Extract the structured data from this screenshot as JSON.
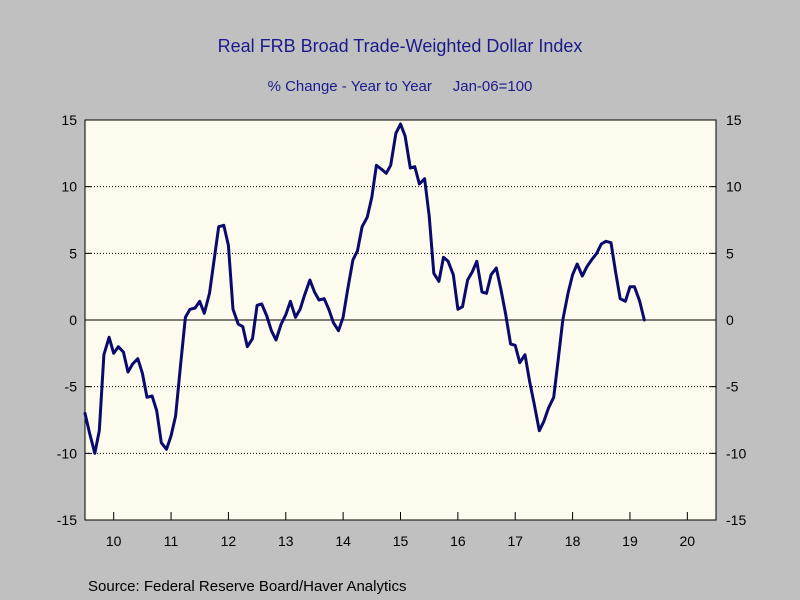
{
  "chart_data": {
    "type": "line",
    "title": "Real FRB Broad Trade-Weighted Dollar Index",
    "subtitle": "% Change - Year to Year     Jan-06=100",
    "source": "Source:  Federal Reserve Board/Haver Analytics",
    "xlabel": "",
    "ylabel": "",
    "ylim": [
      -15,
      15
    ],
    "y_ticks": [
      -15,
      -10,
      -5,
      0,
      5,
      10,
      15
    ],
    "y_tick_labels": [
      "-15",
      "-10",
      "-5",
      "0",
      "5",
      "10",
      "15"
    ],
    "xlim": [
      2009.5,
      2020.5
    ],
    "x_tick_labels": [
      "10",
      "11",
      "12",
      "13",
      "14",
      "15",
      "16",
      "17",
      "18",
      "19",
      "20"
    ],
    "grid": "horizontal dotted",
    "colors": {
      "line": "#0a0a6e",
      "plot_background": "#fdfbee",
      "outer_background": "#c0c0c0",
      "title": "#1a1a8c"
    },
    "series": [
      {
        "values": [
          [
            2009.5,
            -7.0
          ],
          [
            2009.58,
            -8.5
          ],
          [
            2009.67,
            -10.0
          ],
          [
            2009.75,
            -8.3
          ],
          [
            2009.83,
            -2.6
          ],
          [
            2009.92,
            -1.3
          ],
          [
            2010.0,
            -2.5
          ],
          [
            2010.08,
            -2.0
          ],
          [
            2010.17,
            -2.4
          ],
          [
            2010.25,
            -3.9
          ],
          [
            2010.33,
            -3.3
          ],
          [
            2010.42,
            -2.9
          ],
          [
            2010.5,
            -4.0
          ],
          [
            2010.58,
            -5.8
          ],
          [
            2010.67,
            -5.7
          ],
          [
            2010.75,
            -6.8
          ],
          [
            2010.83,
            -9.2
          ],
          [
            2010.92,
            -9.7
          ],
          [
            2011.0,
            -8.7
          ],
          [
            2011.08,
            -7.2
          ],
          [
            2011.17,
            -3.2
          ],
          [
            2011.25,
            0.2
          ],
          [
            2011.33,
            0.8
          ],
          [
            2011.42,
            0.9
          ],
          [
            2011.5,
            1.4
          ],
          [
            2011.58,
            0.5
          ],
          [
            2011.67,
            2.0
          ],
          [
            2011.75,
            4.5
          ],
          [
            2011.83,
            7.0
          ],
          [
            2011.92,
            7.1
          ],
          [
            2012.0,
            5.6
          ],
          [
            2012.08,
            0.8
          ],
          [
            2012.17,
            -0.3
          ],
          [
            2012.25,
            -0.5
          ],
          [
            2012.33,
            -2.0
          ],
          [
            2012.42,
            -1.4
          ],
          [
            2012.5,
            1.1
          ],
          [
            2012.58,
            1.2
          ],
          [
            2012.67,
            0.3
          ],
          [
            2012.75,
            -0.8
          ],
          [
            2012.83,
            -1.5
          ],
          [
            2012.92,
            -0.3
          ],
          [
            2013.0,
            0.4
          ],
          [
            2013.08,
            1.4
          ],
          [
            2013.17,
            0.2
          ],
          [
            2013.25,
            0.8
          ],
          [
            2013.33,
            1.9
          ],
          [
            2013.42,
            3.0
          ],
          [
            2013.5,
            2.1
          ],
          [
            2013.58,
            1.5
          ],
          [
            2013.67,
            1.6
          ],
          [
            2013.75,
            0.8
          ],
          [
            2013.83,
            -0.2
          ],
          [
            2013.92,
            -0.8
          ],
          [
            2014.0,
            0.2
          ],
          [
            2014.08,
            2.3
          ],
          [
            2014.17,
            4.5
          ],
          [
            2014.25,
            5.2
          ],
          [
            2014.33,
            7.0
          ],
          [
            2014.42,
            7.7
          ],
          [
            2014.5,
            9.2
          ],
          [
            2014.58,
            11.6
          ],
          [
            2014.67,
            11.3
          ],
          [
            2014.75,
            11.0
          ],
          [
            2014.83,
            11.6
          ],
          [
            2014.92,
            14.0
          ],
          [
            2015.0,
            14.7
          ],
          [
            2015.08,
            13.8
          ],
          [
            2015.17,
            11.4
          ],
          [
            2015.25,
            11.5
          ],
          [
            2015.33,
            10.2
          ],
          [
            2015.42,
            10.6
          ],
          [
            2015.5,
            7.8
          ],
          [
            2015.58,
            3.5
          ],
          [
            2015.67,
            2.9
          ],
          [
            2015.75,
            4.7
          ],
          [
            2015.83,
            4.4
          ],
          [
            2015.92,
            3.4
          ],
          [
            2016.0,
            0.8
          ],
          [
            2016.08,
            1.0
          ],
          [
            2016.17,
            3.0
          ],
          [
            2016.25,
            3.6
          ],
          [
            2016.33,
            4.4
          ],
          [
            2016.42,
            2.1
          ],
          [
            2016.5,
            2.0
          ],
          [
            2016.58,
            3.4
          ],
          [
            2016.67,
            3.9
          ],
          [
            2016.75,
            2.3
          ],
          [
            2016.83,
            0.5
          ],
          [
            2016.92,
            -1.8
          ],
          [
            2017.0,
            -1.9
          ],
          [
            2017.08,
            -3.2
          ],
          [
            2017.17,
            -2.6
          ],
          [
            2017.25,
            -4.6
          ],
          [
            2017.33,
            -6.3
          ],
          [
            2017.42,
            -8.3
          ],
          [
            2017.5,
            -7.6
          ],
          [
            2017.58,
            -6.6
          ],
          [
            2017.67,
            -5.8
          ],
          [
            2017.75,
            -2.9
          ],
          [
            2017.83,
            0.0
          ],
          [
            2017.92,
            2.0
          ],
          [
            2018.0,
            3.4
          ],
          [
            2018.08,
            4.2
          ],
          [
            2018.17,
            3.3
          ],
          [
            2018.25,
            4.0
          ],
          [
            2018.33,
            4.5
          ],
          [
            2018.42,
            5.0
          ],
          [
            2018.5,
            5.7
          ],
          [
            2018.58,
            5.9
          ],
          [
            2018.67,
            5.8
          ],
          [
            2018.75,
            3.6
          ],
          [
            2018.83,
            1.6
          ],
          [
            2018.92,
            1.4
          ],
          [
            2019.0,
            2.5
          ],
          [
            2019.08,
            2.5
          ],
          [
            2019.17,
            1.4
          ],
          [
            2019.25,
            0.0
          ]
        ]
      }
    ]
  }
}
